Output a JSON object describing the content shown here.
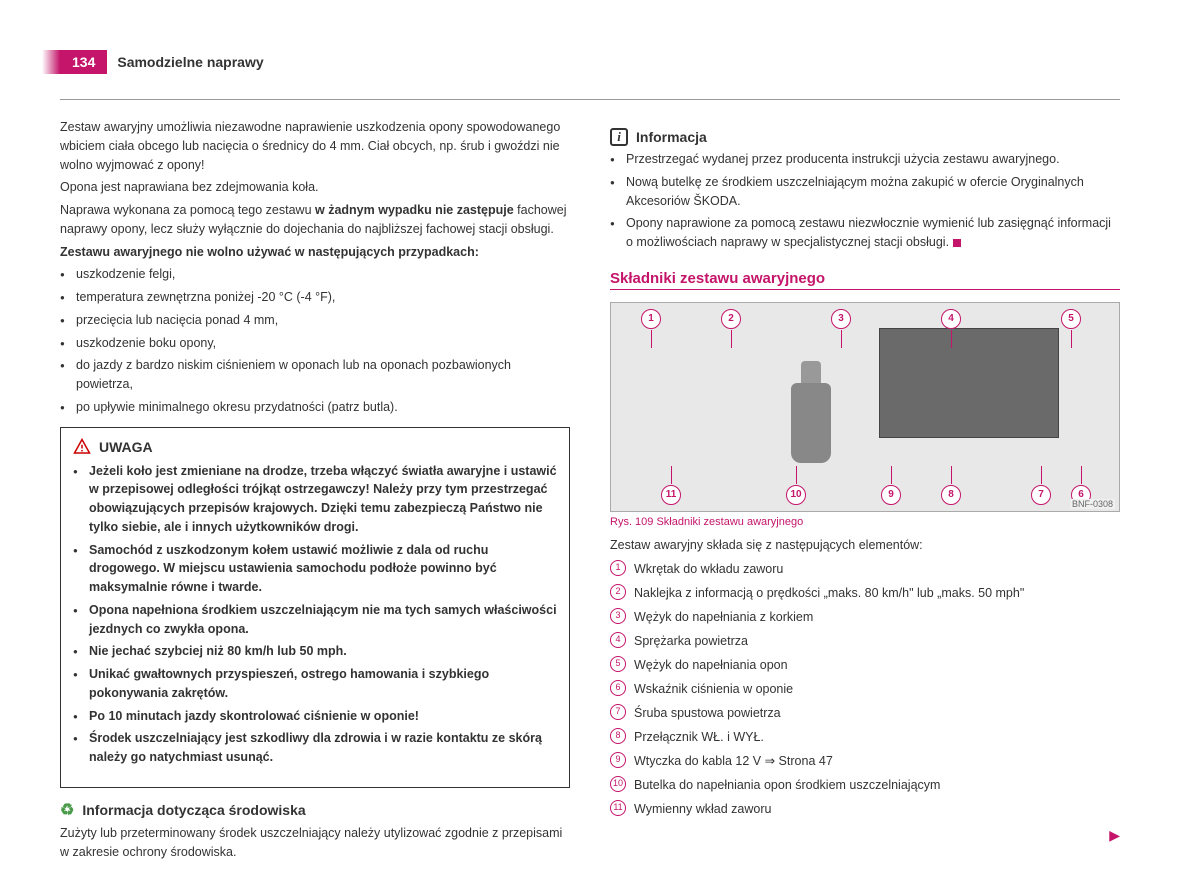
{
  "page_number": "134",
  "chapter": "Samodzielne naprawy",
  "left": {
    "p1": "Zestaw awaryjny umożliwia niezawodne naprawienie uszkodzenia opony spowodowanego wbiciem ciała obcego lub nacięcia o średnicy do 4 mm. Ciał obcych, np. śrub i gwoździ nie wolno wyjmować z opony!",
    "p2": "Opona jest naprawiana bez zdejmowania koła.",
    "p3a": "Naprawa wykonana za pomocą tego zestawu ",
    "p3b": "w żadnym wypadku nie zastępuje",
    "p3c": " fachowej naprawy opony, lecz służy wyłącznie do dojechania do najbliższej fachowej stacji obsługi.",
    "p4": "Zestawu awaryjnego nie wolno używać w następujących przypadkach:",
    "cases": [
      "uszkodzenie felgi,",
      "temperatura zewnętrzna poniżej -20 °C (-4 °F),",
      "przecięcia lub nacięcia ponad 4 mm,",
      "uszkodzenie boku opony,",
      "do jazdy z bardzo niskim ciśnieniem w oponach lub na oponach pozbawionych powietrza,",
      "po upływie minimalnego okresu przydatności (patrz butla)."
    ],
    "warning_title": "UWAGA",
    "warnings": [
      "Jeżeli koło jest zmieniane na drodze, trzeba włączyć światła awaryjne i ustawić w przepisowej odległości trójkąt ostrzegawczy! Należy przy tym przestrzegać obowiązujących przepisów krajowych. Dzięki temu zabezpieczą Państwo nie tylko siebie, ale i innych użytkowników drogi.",
      "Samochód z uszkodzonym kołem ustawić możliwie z dala od ruchu drogowego. W miejscu ustawienia samochodu podłoże powinno być maksymalnie równe i twarde.",
      "Opona napełniona środkiem uszczelniającym nie ma tych samych właściwości jezdnych co zwykła opona.",
      "Nie jechać szybciej niż 80 km/h lub 50 mph.",
      "Unikać gwałtownych przyspieszeń, ostrego hamowania i szybkiego pokonywania zakrętów.",
      "Po 10 minutach jazdy skontrolować ciśnienie w oponie!",
      "Środek uszczelniający jest szkodliwy dla zdrowia i w razie kontaktu ze skórą należy go natychmiast usunąć."
    ],
    "env_title": "Informacja dotycząca środowiska",
    "env_text": "Zużyty lub przeterminowany środek uszczelniający należy utylizować zgodnie z przepisami w zakresie ochrony środowiska."
  },
  "right": {
    "info_title": "Informacja",
    "info_items": [
      "Przestrzegać wydanej przez producenta instrukcji użycia zestawu awaryjnego.",
      "Nową butelkę ze środkiem uszczelniającym można zakupić w ofercie Oryginalnych Akcesoriów ŠKODA.",
      "Opony naprawione za pomocą zestawu niezwłocznie wymienić lub zasięgnąć informacji o możliwościach naprawy w specjalistycznej stacji obsługi."
    ],
    "components_title": "Składniki zestawu awaryjnego",
    "fig_caption": "Rys. 109  Składniki zestawu awaryjnego",
    "fig_code": "BNF-0308",
    "fig_intro": "Zestaw awaryjny składa się z następujących elementów:",
    "labels_top": [
      "1",
      "2",
      "3",
      "4",
      "5"
    ],
    "labels_bottom": [
      "11",
      "10",
      "9",
      "8",
      "7",
      "6"
    ],
    "components": [
      {
        "n": "1",
        "t": "Wkrętak do wkładu zaworu"
      },
      {
        "n": "2",
        "t": "Naklejka z informacją o prędkości „maks. 80 km/h\" lub „maks. 50 mph\""
      },
      {
        "n": "3",
        "t": "Wężyk do napełniania z korkiem"
      },
      {
        "n": "4",
        "t": "Sprężarka powietrza"
      },
      {
        "n": "5",
        "t": "Wężyk do napełniania opon"
      },
      {
        "n": "6",
        "t": "Wskaźnik ciśnienia w oponie"
      },
      {
        "n": "7",
        "t": "Śruba spustowa powietrza"
      },
      {
        "n": "8",
        "t": "Przełącznik WŁ. i WYŁ."
      },
      {
        "n": "9",
        "t": "Wtyczka do kabla 12 V ⇒ Strona 47"
      },
      {
        "n": "10",
        "t": "Butelka do napełniania opon środkiem uszczelniającym"
      },
      {
        "n": "11",
        "t": "Wymienny wkład zaworu"
      }
    ]
  },
  "colors": {
    "accent": "#c4156a"
  }
}
